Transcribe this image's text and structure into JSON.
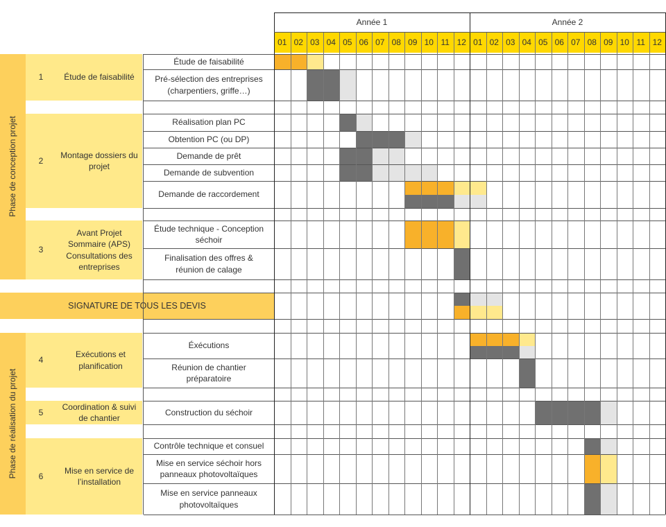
{
  "header": {
    "year_labels": [
      "Année 1",
      "Année 2"
    ],
    "month_labels": [
      "01",
      "02",
      "03",
      "04",
      "05",
      "06",
      "07",
      "08",
      "09",
      "10",
      "11",
      "12"
    ]
  },
  "colors": {
    "dark": "#707070",
    "orange": "#f8b12a",
    "yellow": "#ffe98d",
    "light": "#e4e4e4",
    "month_header": "#ffd800",
    "phase": "#fdd05c",
    "group": "#ffe98a",
    "signature": "#fdd05c"
  },
  "phases": [
    {
      "label": "Phase de conception projet"
    },
    {
      "label": "Phase de réalisation du projet"
    }
  ],
  "groups": [
    {
      "number": "1",
      "name": "Étude de faisabilité"
    },
    {
      "number": "2",
      "name": "Montage dossiers du projet"
    },
    {
      "number": "3",
      "name": "Avant Projet Sommaire (APS) Consultations des entreprises"
    },
    {
      "number": "4",
      "name": "Exécutions et planification"
    },
    {
      "number": "5",
      "name": "Coordination & suivi de chantier"
    },
    {
      "number": "6",
      "name": "Mise en service de l’installation"
    }
  ],
  "signature": {
    "label": "SIGNATURE DE TOUS LES DEVIS"
  },
  "tasks": [
    {
      "label": "Étude de faisabilité"
    },
    {
      "label": "Pré-sélection des entreprises (charpentiers, griffe…)"
    },
    {
      "label": "Réalisation plan PC"
    },
    {
      "label": "Obtention PC (ou DP)"
    },
    {
      "label": "Demande de prêt"
    },
    {
      "label": "Demande de subvention"
    },
    {
      "label": "Demande de raccordement"
    },
    {
      "label": "Étude technique - Conception séchoir"
    },
    {
      "label": "Finalisation des offres & réunion de calage"
    },
    {
      "label": "Éxécutions"
    },
    {
      "label": "Réunion de chantier préparatoire"
    },
    {
      "label": "Construction du séchoir"
    },
    {
      "label": "Contrôle technique et consuel"
    },
    {
      "label": "Mise en service séchoir hors panneaux photovoltaïques"
    },
    {
      "label": "Mise en service panneaux photovoltaïques"
    }
  ],
  "schedule": [
    {
      "task": "Étude de faisabilité",
      "bars": [
        {
          "start": 1,
          "end": 2,
          "kind": "orange"
        },
        {
          "start": 3,
          "end": 3,
          "kind": "yellow"
        }
      ]
    },
    {
      "task": "Pré-sélection des entreprises (charpentiers, griffe…)",
      "bars": [
        {
          "start": 3,
          "end": 4,
          "kind": "dark"
        },
        {
          "start": 5,
          "end": 5,
          "kind": "light"
        }
      ]
    },
    {
      "task": "Réalisation plan PC",
      "bars": [
        {
          "start": 5,
          "end": 5,
          "kind": "dark"
        },
        {
          "start": 6,
          "end": 6,
          "kind": "light"
        }
      ]
    },
    {
      "task": "Obtention PC (ou DP)",
      "bars": [
        {
          "start": 6,
          "end": 8,
          "kind": "dark"
        },
        {
          "start": 9,
          "end": 9,
          "kind": "light"
        }
      ]
    },
    {
      "task": "Demande de prêt",
      "bars": [
        {
          "start": 5,
          "end": 6,
          "kind": "dark"
        },
        {
          "start": 7,
          "end": 8,
          "kind": "light"
        }
      ]
    },
    {
      "task": "Demande de subvention",
      "bars": [
        {
          "start": 5,
          "end": 6,
          "kind": "dark"
        },
        {
          "start": 7,
          "end": 10,
          "kind": "light"
        }
      ]
    },
    {
      "task": "Demande de raccordement",
      "bars": [
        {
          "start": 9,
          "end": 11,
          "kind": "orange",
          "part": "top"
        },
        {
          "start": 12,
          "end": 13,
          "kind": "yellow",
          "part": "top"
        },
        {
          "start": 9,
          "end": 11,
          "kind": "dark",
          "part": "bottom"
        },
        {
          "start": 12,
          "end": 13,
          "kind": "light",
          "part": "bottom"
        }
      ]
    },
    {
      "task": "Étude technique - Conception séchoir",
      "bars": [
        {
          "start": 9,
          "end": 11,
          "kind": "orange"
        },
        {
          "start": 12,
          "end": 12,
          "kind": "yellow"
        }
      ]
    },
    {
      "task": "Finalisation des offres & réunion de calage",
      "bars": [
        {
          "start": 12,
          "end": 12,
          "kind": "dark"
        }
      ]
    },
    {
      "task": "SIGNATURE DE TOUS LES DEVIS",
      "bars": [
        {
          "start": 12,
          "end": 12,
          "kind": "dark",
          "part": "top"
        },
        {
          "start": 13,
          "end": 14,
          "kind": "light",
          "part": "top"
        },
        {
          "start": 12,
          "end": 12,
          "kind": "orange",
          "part": "bottom"
        },
        {
          "start": 13,
          "end": 14,
          "kind": "yellow",
          "part": "bottom"
        }
      ]
    },
    {
      "task": "Éxécutions",
      "bars": [
        {
          "start": 13,
          "end": 15,
          "kind": "orange",
          "part": "top"
        },
        {
          "start": 16,
          "end": 16,
          "kind": "yellow",
          "part": "top"
        },
        {
          "start": 13,
          "end": 15,
          "kind": "dark",
          "part": "bottom"
        },
        {
          "start": 16,
          "end": 16,
          "kind": "light",
          "part": "bottom"
        }
      ]
    },
    {
      "task": "Réunion de chantier préparatoire",
      "bars": [
        {
          "start": 16,
          "end": 16,
          "kind": "dark"
        }
      ]
    },
    {
      "task": "Construction du séchoir",
      "bars": [
        {
          "start": 17,
          "end": 20,
          "kind": "dark"
        },
        {
          "start": 21,
          "end": 21,
          "kind": "light"
        }
      ]
    },
    {
      "task": "Contrôle technique et consuel",
      "bars": [
        {
          "start": 20,
          "end": 20,
          "kind": "dark"
        },
        {
          "start": 21,
          "end": 21,
          "kind": "light"
        }
      ]
    },
    {
      "task": "Mise en service séchoir hors panneaux photovoltaïques",
      "bars": [
        {
          "start": 20,
          "end": 20,
          "kind": "orange"
        },
        {
          "start": 21,
          "end": 21,
          "kind": "yellow"
        }
      ]
    },
    {
      "task": "Mise en service panneaux photovoltaïques",
      "bars": [
        {
          "start": 20,
          "end": 20,
          "kind": "dark"
        },
        {
          "start": 21,
          "end": 21,
          "kind": "light"
        }
      ]
    }
  ]
}
